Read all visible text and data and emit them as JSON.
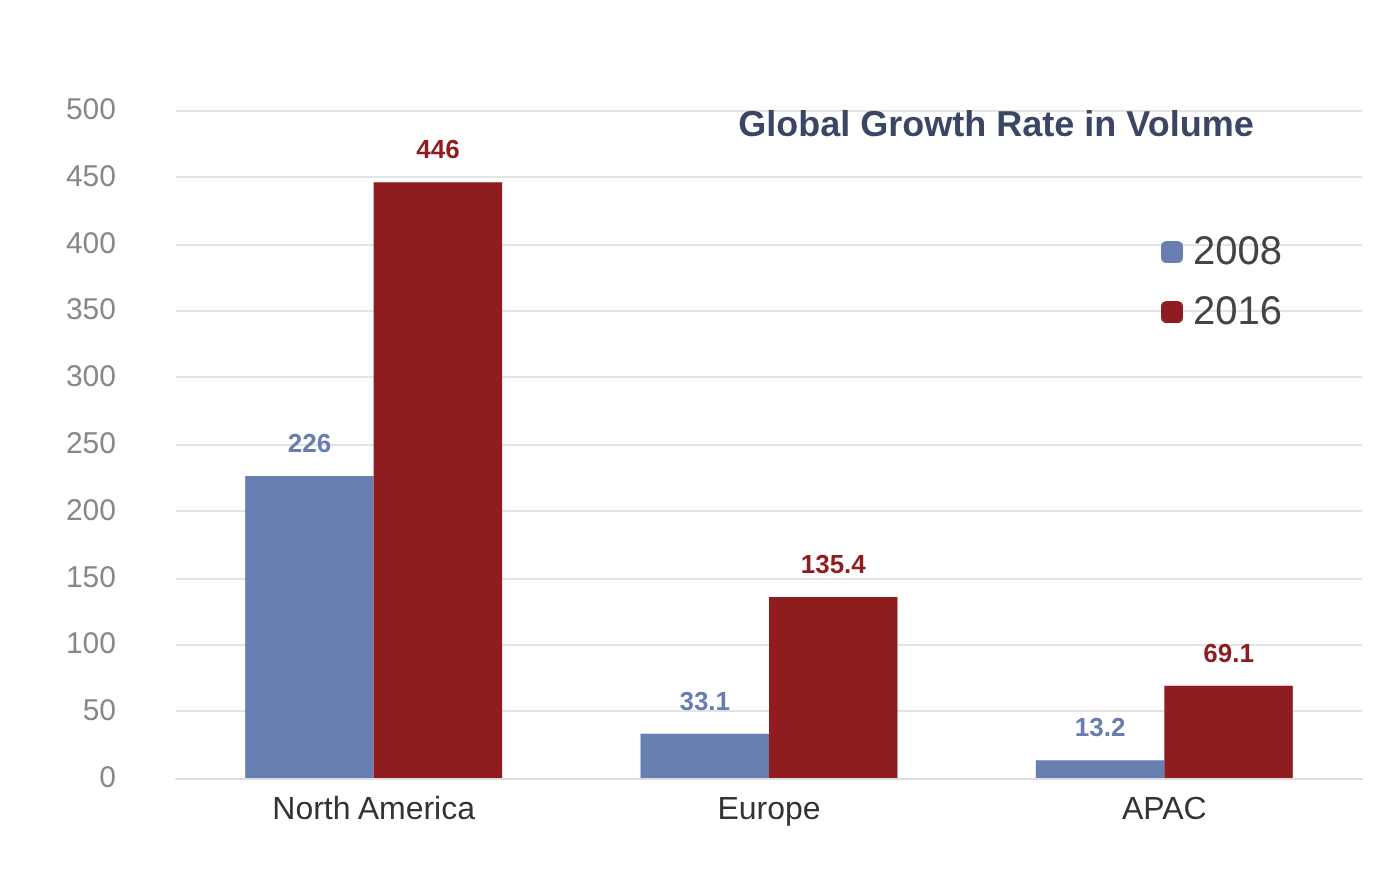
{
  "chart_data": {
    "type": "bar",
    "title": "Global Growth Rate in Volume",
    "categories": [
      "North America",
      "Europe",
      "APAC"
    ],
    "series": [
      {
        "name": "2008",
        "color": "#687eb1",
        "values": [
          226,
          33.1,
          13.2
        ]
      },
      {
        "name": "2016",
        "color": "#8f1c1e",
        "values": [
          446,
          135.4,
          69.1
        ]
      }
    ],
    "ylim": [
      0,
      500
    ],
    "yticks": [
      0,
      50,
      100,
      150,
      200,
      250,
      300,
      350,
      400,
      450,
      500
    ],
    "grid": "y",
    "legend": "top right",
    "data_labels": true
  }
}
